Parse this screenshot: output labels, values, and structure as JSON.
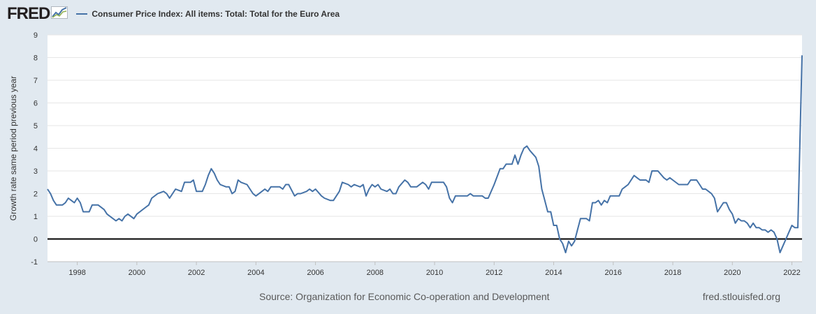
{
  "brand": {
    "logo_text": "FRED"
  },
  "footer": {
    "source": "Source: Organization for Economic Co-operation and Development",
    "site": "fred.stlouisfed.org"
  },
  "colors": {
    "series": "#4572a7",
    "background": "#e1e9f0",
    "plot": "#ffffff",
    "zero_line": "#000000"
  },
  "chart_data": {
    "type": "line",
    "title": "Consumer Price Index: All items: Total: Total for the Euro Area",
    "xlabel": "",
    "ylabel": "Growth rate same period previous year",
    "ylim": [
      -1,
      9
    ],
    "yticks": [
      -1,
      0,
      1,
      2,
      3,
      4,
      5,
      6,
      7,
      8,
      9
    ],
    "xlim": [
      1997.0,
      2022.34
    ],
    "xticks": [
      1998,
      2000,
      2002,
      2004,
      2006,
      2008,
      2010,
      2012,
      2014,
      2016,
      2018,
      2020,
      2022
    ],
    "reference_line": 0,
    "series": [
      {
        "name": "Consumer Price Index: All items: Total: Total for the Euro Area",
        "points": [
          [
            1997.0,
            2.2
          ],
          [
            1997.1,
            2.0
          ],
          [
            1997.2,
            1.7
          ],
          [
            1997.3,
            1.5
          ],
          [
            1997.5,
            1.5
          ],
          [
            1997.6,
            1.6
          ],
          [
            1997.7,
            1.8
          ],
          [
            1997.8,
            1.7
          ],
          [
            1997.9,
            1.6
          ],
          [
            1998.0,
            1.8
          ],
          [
            1998.1,
            1.6
          ],
          [
            1998.2,
            1.2
          ],
          [
            1998.4,
            1.2
          ],
          [
            1998.5,
            1.5
          ],
          [
            1998.7,
            1.5
          ],
          [
            1998.9,
            1.3
          ],
          [
            1999.0,
            1.1
          ],
          [
            1999.2,
            0.9
          ],
          [
            1999.3,
            0.8
          ],
          [
            1999.4,
            0.9
          ],
          [
            1999.5,
            0.8
          ],
          [
            1999.6,
            1.0
          ],
          [
            1999.7,
            1.1
          ],
          [
            1999.9,
            0.9
          ],
          [
            2000.0,
            1.1
          ],
          [
            2000.3,
            1.4
          ],
          [
            2000.4,
            1.5
          ],
          [
            2000.5,
            1.8
          ],
          [
            2000.7,
            2.0
          ],
          [
            2000.9,
            2.1
          ],
          [
            2001.0,
            2.0
          ],
          [
            2001.1,
            1.8
          ],
          [
            2001.2,
            2.0
          ],
          [
            2001.3,
            2.2
          ],
          [
            2001.5,
            2.1
          ],
          [
            2001.6,
            2.5
          ],
          [
            2001.8,
            2.5
          ],
          [
            2001.9,
            2.6
          ],
          [
            2002.0,
            2.1
          ],
          [
            2002.2,
            2.1
          ],
          [
            2002.3,
            2.4
          ],
          [
            2002.4,
            2.8
          ],
          [
            2002.5,
            3.1
          ],
          [
            2002.6,
            2.9
          ],
          [
            2002.7,
            2.6
          ],
          [
            2002.8,
            2.4
          ],
          [
            2003.0,
            2.3
          ],
          [
            2003.1,
            2.3
          ],
          [
            2003.2,
            2.0
          ],
          [
            2003.3,
            2.1
          ],
          [
            2003.4,
            2.6
          ],
          [
            2003.5,
            2.5
          ],
          [
            2003.7,
            2.4
          ],
          [
            2003.8,
            2.2
          ],
          [
            2003.9,
            2.0
          ],
          [
            2004.0,
            1.9
          ],
          [
            2004.2,
            2.1
          ],
          [
            2004.3,
            2.2
          ],
          [
            2004.4,
            2.1
          ],
          [
            2004.5,
            2.3
          ],
          [
            2004.8,
            2.3
          ],
          [
            2004.9,
            2.2
          ],
          [
            2005.0,
            2.4
          ],
          [
            2005.1,
            2.4
          ],
          [
            2005.3,
            1.9
          ],
          [
            2005.4,
            2.0
          ],
          [
            2005.5,
            2.0
          ],
          [
            2005.7,
            2.1
          ],
          [
            2005.8,
            2.2
          ],
          [
            2005.9,
            2.1
          ],
          [
            2006.0,
            2.2
          ],
          [
            2006.2,
            1.9
          ],
          [
            2006.3,
            1.8
          ],
          [
            2006.5,
            1.7
          ],
          [
            2006.6,
            1.7
          ],
          [
            2006.8,
            2.1
          ],
          [
            2006.9,
            2.5
          ],
          [
            2007.1,
            2.4
          ],
          [
            2007.2,
            2.3
          ],
          [
            2007.3,
            2.4
          ],
          [
            2007.5,
            2.3
          ],
          [
            2007.6,
            2.4
          ],
          [
            2007.7,
            1.9
          ],
          [
            2007.8,
            2.2
          ],
          [
            2007.9,
            2.4
          ],
          [
            2008.0,
            2.3
          ],
          [
            2008.1,
            2.4
          ],
          [
            2008.2,
            2.2
          ],
          [
            2008.4,
            2.1
          ],
          [
            2008.5,
            2.2
          ],
          [
            2008.6,
            2.0
          ],
          [
            2008.7,
            2.0
          ],
          [
            2008.8,
            2.3
          ],
          [
            2009.0,
            2.6
          ],
          [
            2009.1,
            2.5
          ],
          [
            2009.2,
            2.3
          ],
          [
            2009.4,
            2.3
          ],
          [
            2009.6,
            2.5
          ],
          [
            2009.7,
            2.4
          ],
          [
            2009.8,
            2.2
          ],
          [
            2009.9,
            2.5
          ],
          [
            2010.1,
            2.5
          ],
          [
            2010.3,
            2.5
          ],
          [
            2010.4,
            2.3
          ],
          [
            2010.5,
            1.8
          ],
          [
            2010.6,
            1.6
          ],
          [
            2010.7,
            1.9
          ],
          [
            2010.9,
            1.9
          ],
          [
            2011.1,
            1.9
          ],
          [
            2011.2,
            2.0
          ],
          [
            2011.3,
            1.9
          ],
          [
            2011.6,
            1.9
          ],
          [
            2011.7,
            1.8
          ],
          [
            2011.8,
            1.8
          ],
          [
            2012.0,
            2.4
          ],
          [
            2012.2,
            3.1
          ],
          [
            2012.3,
            3.1
          ],
          [
            2012.4,
            3.3
          ],
          [
            2012.6,
            3.3
          ],
          [
            2012.7,
            3.7
          ],
          [
            2012.8,
            3.3
          ],
          [
            2012.9,
            3.7
          ],
          [
            2013.0,
            4.0
          ],
          [
            2013.1,
            4.1
          ],
          [
            2013.2,
            3.9
          ],
          [
            2013.4,
            3.6
          ],
          [
            2013.5,
            3.2
          ],
          [
            2013.6,
            2.2
          ],
          [
            2013.7,
            1.7
          ],
          [
            2013.8,
            1.2
          ],
          [
            2013.9,
            1.2
          ],
          [
            2014.0,
            0.6
          ],
          [
            2014.1,
            0.6
          ],
          [
            2014.2,
            0.0
          ],
          [
            2014.3,
            -0.2
          ],
          [
            2014.4,
            -0.6
          ],
          [
            2014.5,
            -0.1
          ],
          [
            2014.6,
            -0.3
          ],
          [
            2014.7,
            -0.1
          ],
          [
            2014.8,
            0.4
          ],
          [
            2014.9,
            0.9
          ],
          [
            2015.1,
            0.9
          ],
          [
            2015.2,
            0.8
          ],
          [
            2015.3,
            1.6
          ],
          [
            2015.4,
            1.6
          ],
          [
            2015.5,
            1.7
          ],
          [
            2015.6,
            1.5
          ],
          [
            2015.7,
            1.7
          ],
          [
            2015.8,
            1.6
          ],
          [
            2015.9,
            1.9
          ],
          [
            2016.0,
            1.9
          ],
          [
            2016.2,
            1.9
          ],
          [
            2016.3,
            2.2
          ],
          [
            2016.4,
            2.3
          ],
          [
            2016.5,
            2.4
          ],
          [
            2016.7,
            2.8
          ],
          [
            2016.8,
            2.7
          ],
          [
            2016.9,
            2.6
          ],
          [
            2017.1,
            2.6
          ],
          [
            2017.2,
            2.5
          ],
          [
            2017.3,
            3.0
          ],
          [
            2017.4,
            3.0
          ],
          [
            2017.5,
            3.0
          ],
          [
            2017.7,
            2.7
          ],
          [
            2017.8,
            2.6
          ],
          [
            2017.9,
            2.7
          ],
          [
            2018.0,
            2.6
          ],
          [
            2018.2,
            2.4
          ],
          [
            2018.3,
            2.4
          ],
          [
            2018.5,
            2.4
          ],
          [
            2018.6,
            2.6
          ],
          [
            2018.8,
            2.6
          ],
          [
            2018.9,
            2.4
          ],
          [
            2019.0,
            2.2
          ],
          [
            2019.1,
            2.2
          ],
          [
            2019.3,
            2.0
          ],
          [
            2019.4,
            1.8
          ],
          [
            2019.5,
            1.2
          ],
          [
            2019.7,
            1.6
          ],
          [
            2019.8,
            1.6
          ],
          [
            2019.9,
            1.3
          ],
          [
            2020.0,
            1.1
          ],
          [
            2020.1,
            0.7
          ],
          [
            2020.2,
            0.9
          ],
          [
            2020.3,
            0.8
          ],
          [
            2020.4,
            0.8
          ],
          [
            2020.5,
            0.7
          ],
          [
            2020.6,
            0.5
          ],
          [
            2020.7,
            0.7
          ],
          [
            2020.8,
            0.5
          ],
          [
            2020.9,
            0.5
          ],
          [
            2021.0,
            0.4
          ],
          [
            2021.1,
            0.4
          ],
          [
            2021.2,
            0.3
          ],
          [
            2021.3,
            0.4
          ],
          [
            2021.4,
            0.3
          ],
          [
            2021.5,
            0.0
          ],
          [
            2021.6,
            -0.6
          ],
          [
            2021.7,
            -0.3
          ],
          [
            2021.8,
            0.0
          ],
          [
            2021.9,
            0.3
          ],
          [
            2022.0,
            0.6
          ],
          [
            2022.1,
            0.5
          ],
          [
            2022.2,
            0.5
          ],
          [
            2022.34,
            8.1
          ]
        ]
      }
    ]
  }
}
